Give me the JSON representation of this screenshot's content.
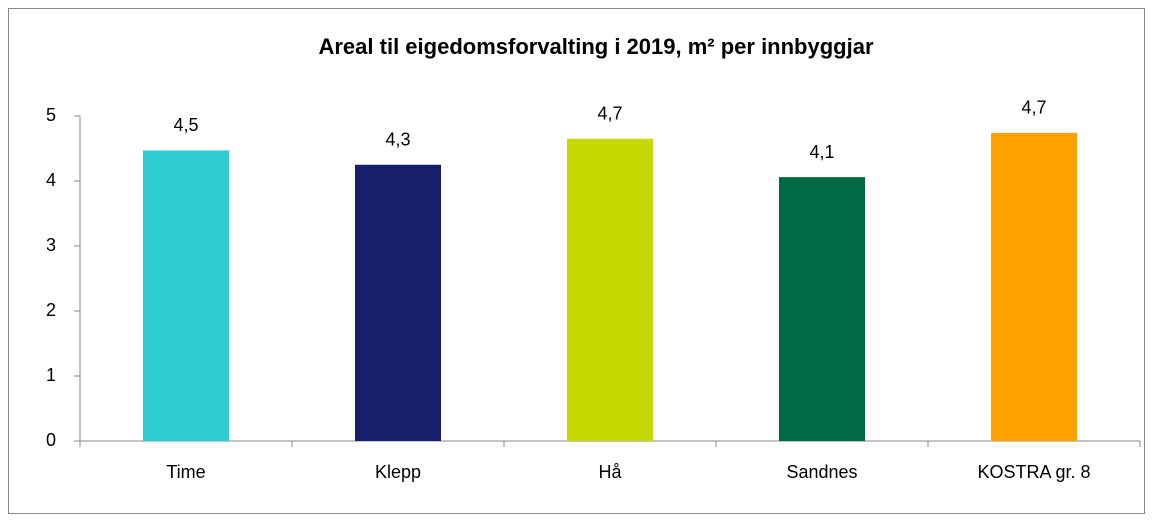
{
  "chart_data": {
    "type": "bar",
    "title": "Areal til eigedomsforvalting i 2019, m² per innbyggjar",
    "categories": [
      "Time",
      "Klepp",
      "Hå",
      "Sandnes",
      "KOSTRA gr. 8"
    ],
    "values": [
      4.47,
      4.25,
      4.65,
      4.06,
      4.74
    ],
    "value_labels": [
      "4,5",
      "4,3",
      "4,7",
      "4,1",
      "4,7"
    ],
    "colors": [
      "#2ecbd2",
      "#161f6b",
      "#c5d800",
      "#006a45",
      "#ffa200"
    ],
    "ylim": [
      0,
      5
    ],
    "yticks": [
      0,
      1,
      2,
      3,
      4,
      5
    ],
    "grid": false
  }
}
